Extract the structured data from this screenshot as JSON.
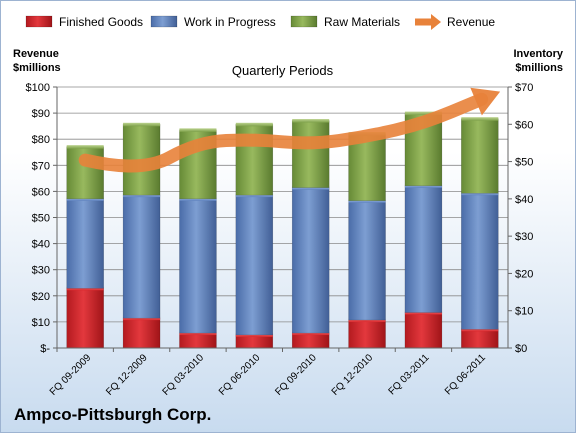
{
  "chart_data": {
    "type": "bar",
    "stacked": true,
    "title": "Quarterly Periods",
    "ylabel_left": "Revenue\n$millions",
    "ylabel_right": "Inventory\n$millions",
    "company": "Ampco-Pittsburgh Corp.",
    "categories": [
      "FQ 09-2009",
      "FQ 12-2009",
      "FQ 03-2010",
      "FQ 06-2010",
      "FQ 09-2010",
      "FQ 12-2010",
      "FQ 03-2011",
      "FQ 06-2011"
    ],
    "left_ticks": [
      "$-",
      "$10",
      "$20",
      "$30",
      "$40",
      "$50",
      "$60",
      "$70",
      "$80",
      "$90",
      "$100"
    ],
    "right_ticks": [
      "$0",
      "$10",
      "$20",
      "$30",
      "$40",
      "$50",
      "$60",
      "$70"
    ],
    "ylim_left": [
      0,
      100
    ],
    "ylim_right": [
      0,
      70
    ],
    "legend_position": "top",
    "grid": true,
    "series": [
      {
        "name": "Finished Goods",
        "axis": "right",
        "color": "#d9262b",
        "values": [
          16,
          8,
          4,
          3.5,
          4,
          7.5,
          9.5,
          5
        ]
      },
      {
        "name": "Work in Progress",
        "axis": "right",
        "color": "#5e82bf",
        "values": [
          24,
          33,
          36,
          37.5,
          39,
          32,
          34,
          36.5
        ]
      },
      {
        "name": "Raw Materials",
        "axis": "right",
        "color": "#7ea14a",
        "values": [
          14,
          19,
          18.5,
          19,
          18,
          18,
          19.5,
          20
        ]
      },
      {
        "name": "Revenue",
        "axis": "left",
        "color": "#e8823a",
        "type": "line",
        "values": [
          72,
          67,
          79,
          80,
          78,
          81,
          86,
          95
        ]
      }
    ]
  }
}
